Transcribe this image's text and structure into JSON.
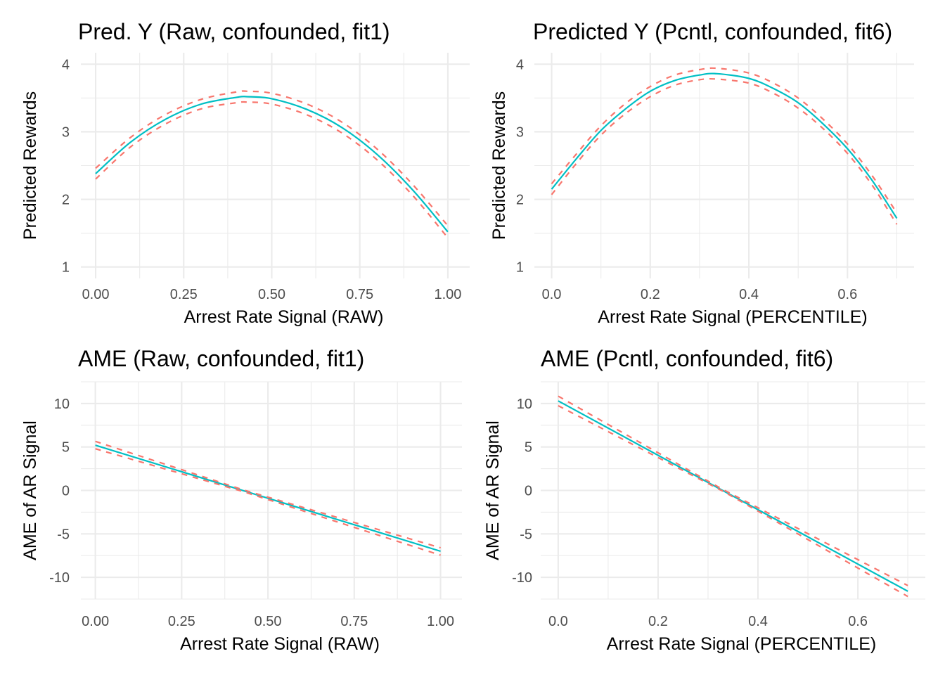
{
  "chart_data": [
    {
      "id": "pred_raw",
      "type": "line",
      "title": "Pred. Y (Raw, confounded, fit1)",
      "xlabel": "Arrest Rate Signal (RAW)",
      "ylabel": "Predicted Rewards",
      "xlim": [
        -0.042,
        1.062
      ],
      "ylim": [
        0.83,
        4.17
      ],
      "xticks": [
        0,
        0.25,
        0.5,
        0.75,
        1.0
      ],
      "xtick_labels": [
        "0.00",
        "0.25",
        "0.50",
        "0.75",
        "1.00"
      ],
      "yticks": [
        1,
        2,
        3,
        4
      ],
      "ytick_labels": [
        "1",
        "2",
        "3",
        "4"
      ],
      "x_minor": [
        0.125,
        0.375,
        0.625,
        0.875
      ],
      "y_minor": [
        1.5,
        2.5,
        3.5
      ],
      "grid": true,
      "series": [
        {
          "name": "estimate",
          "style": "solid",
          "color": "#00bfc4",
          "x": [
            0,
            0.1,
            0.2,
            0.3,
            0.4,
            0.43,
            0.5,
            0.6,
            0.7,
            0.8,
            0.9,
            1.0
          ],
          "y": [
            2.38,
            2.85,
            3.19,
            3.41,
            3.51,
            3.52,
            3.49,
            3.33,
            3.06,
            2.66,
            2.14,
            1.52
          ]
        },
        {
          "name": "upper CI",
          "style": "dashed",
          "color": "#f8766d",
          "x": [
            0,
            0.1,
            0.2,
            0.3,
            0.4,
            0.43,
            0.5,
            0.6,
            0.7,
            0.8,
            0.9,
            1.0
          ],
          "y": [
            2.46,
            2.92,
            3.26,
            3.48,
            3.59,
            3.6,
            3.57,
            3.41,
            3.14,
            2.74,
            2.22,
            1.61
          ]
        },
        {
          "name": "lower CI",
          "style": "dashed",
          "color": "#f8766d",
          "x": [
            0,
            0.1,
            0.2,
            0.3,
            0.4,
            0.43,
            0.5,
            0.6,
            0.7,
            0.8,
            0.9,
            1.0
          ],
          "y": [
            2.3,
            2.78,
            3.12,
            3.34,
            3.43,
            3.44,
            3.41,
            3.25,
            2.98,
            2.58,
            2.06,
            1.43
          ]
        }
      ]
    },
    {
      "id": "pred_pcntl",
      "type": "line",
      "title": "Predicted Y (Pcntl, confounded, fit6)",
      "xlabel": "Arrest Rate Signal (PERCENTILE)",
      "ylabel": "Predicted Rewards",
      "xlim": [
        -0.035,
        0.735
      ],
      "ylim": [
        0.83,
        4.17
      ],
      "xticks": [
        0,
        0.2,
        0.4,
        0.6
      ],
      "xtick_labels": [
        "0.0",
        "0.2",
        "0.4",
        "0.6"
      ],
      "yticks": [
        1,
        2,
        3,
        4
      ],
      "ytick_labels": [
        "1",
        "2",
        "3",
        "4"
      ],
      "x_minor": [
        0.1,
        0.3,
        0.5,
        0.7
      ],
      "y_minor": [
        1.5,
        2.5,
        3.5
      ],
      "grid": true,
      "series": [
        {
          "name": "estimate",
          "style": "solid",
          "color": "#00bfc4",
          "x": [
            0,
            0.05,
            0.1,
            0.15,
            0.2,
            0.25,
            0.3,
            0.335,
            0.4,
            0.45,
            0.5,
            0.55,
            0.6,
            0.65,
            0.7
          ],
          "y": [
            2.15,
            2.6,
            3.02,
            3.34,
            3.6,
            3.76,
            3.84,
            3.86,
            3.79,
            3.64,
            3.43,
            3.12,
            2.75,
            2.28,
            1.72
          ]
        },
        {
          "name": "upper CI",
          "style": "dashed",
          "color": "#f8766d",
          "x": [
            0,
            0.05,
            0.1,
            0.15,
            0.2,
            0.25,
            0.3,
            0.335,
            0.4,
            0.45,
            0.5,
            0.55,
            0.6,
            0.65,
            0.7
          ],
          "y": [
            2.23,
            2.67,
            3.09,
            3.42,
            3.67,
            3.84,
            3.92,
            3.94,
            3.87,
            3.72,
            3.5,
            3.19,
            2.82,
            2.35,
            1.8
          ]
        },
        {
          "name": "lower CI",
          "style": "dashed",
          "color": "#f8766d",
          "x": [
            0,
            0.05,
            0.1,
            0.15,
            0.2,
            0.25,
            0.3,
            0.335,
            0.4,
            0.45,
            0.5,
            0.55,
            0.6,
            0.65,
            0.7
          ],
          "y": [
            2.07,
            2.53,
            2.95,
            3.27,
            3.52,
            3.69,
            3.77,
            3.78,
            3.72,
            3.57,
            3.35,
            3.05,
            2.68,
            2.21,
            1.63
          ]
        }
      ]
    },
    {
      "id": "ame_raw",
      "type": "line",
      "title": "AME (Raw, confounded, fit1)",
      "xlabel": "Arrest Rate Signal (RAW)",
      "ylabel": "AME of AR Signal",
      "xlim": [
        -0.042,
        1.062
      ],
      "ylim": [
        -12.5,
        12.5
      ],
      "xticks": [
        0,
        0.25,
        0.5,
        0.75,
        1.0
      ],
      "xtick_labels": [
        "0.00",
        "0.25",
        "0.50",
        "0.75",
        "1.00"
      ],
      "yticks": [
        -10,
        -5,
        0,
        5,
        10
      ],
      "ytick_labels": [
        "-10",
        "-5",
        "0",
        "5",
        "10"
      ],
      "x_minor": [
        0.125,
        0.375,
        0.625,
        0.875
      ],
      "y_minor": [
        -12.5,
        -7.5,
        -2.5,
        2.5,
        7.5,
        12.5
      ],
      "grid": true,
      "series": [
        {
          "name": "estimate",
          "style": "solid",
          "color": "#00bfc4",
          "x": [
            0,
            1.0
          ],
          "y": [
            5.2,
            -7.0
          ]
        },
        {
          "name": "upper CI",
          "style": "dashed",
          "color": "#f8766d",
          "x": [
            0,
            0.43,
            1.0
          ],
          "y": [
            5.65,
            0.05,
            -6.6
          ]
        },
        {
          "name": "lower CI",
          "style": "dashed",
          "color": "#f8766d",
          "x": [
            0,
            0.43,
            1.0
          ],
          "y": [
            4.8,
            -0.15,
            -7.45
          ]
        }
      ]
    },
    {
      "id": "ame_pcntl",
      "type": "line",
      "title": "AME (Pcntl, confounded, fit6)",
      "xlabel": "Arrest Rate Signal (PERCENTILE)",
      "ylabel": "AME of AR Signal",
      "xlim": [
        -0.035,
        0.735
      ],
      "ylim": [
        -12.5,
        12.5
      ],
      "xticks": [
        0,
        0.2,
        0.4,
        0.6
      ],
      "xtick_labels": [
        "0.0",
        "0.2",
        "0.4",
        "0.6"
      ],
      "yticks": [
        -10,
        -5,
        0,
        5,
        10
      ],
      "ytick_labels": [
        "-10",
        "-5",
        "0",
        "5",
        "10"
      ],
      "x_minor": [
        0.1,
        0.3,
        0.5,
        0.7
      ],
      "y_minor": [
        -12.5,
        -7.5,
        -2.5,
        2.5,
        7.5,
        12.5
      ],
      "grid": true,
      "series": [
        {
          "name": "estimate",
          "style": "solid",
          "color": "#00bfc4",
          "x": [
            0,
            0.7
          ],
          "y": [
            10.3,
            -11.6
          ]
        },
        {
          "name": "upper CI",
          "style": "dashed",
          "color": "#f8766d",
          "x": [
            0,
            0.33,
            0.7
          ],
          "y": [
            10.85,
            0.1,
            -10.95
          ]
        },
        {
          "name": "lower CI",
          "style": "dashed",
          "color": "#f8766d",
          "x": [
            0,
            0.33,
            0.7
          ],
          "y": [
            9.75,
            -0.1,
            -12.2
          ]
        }
      ]
    }
  ]
}
